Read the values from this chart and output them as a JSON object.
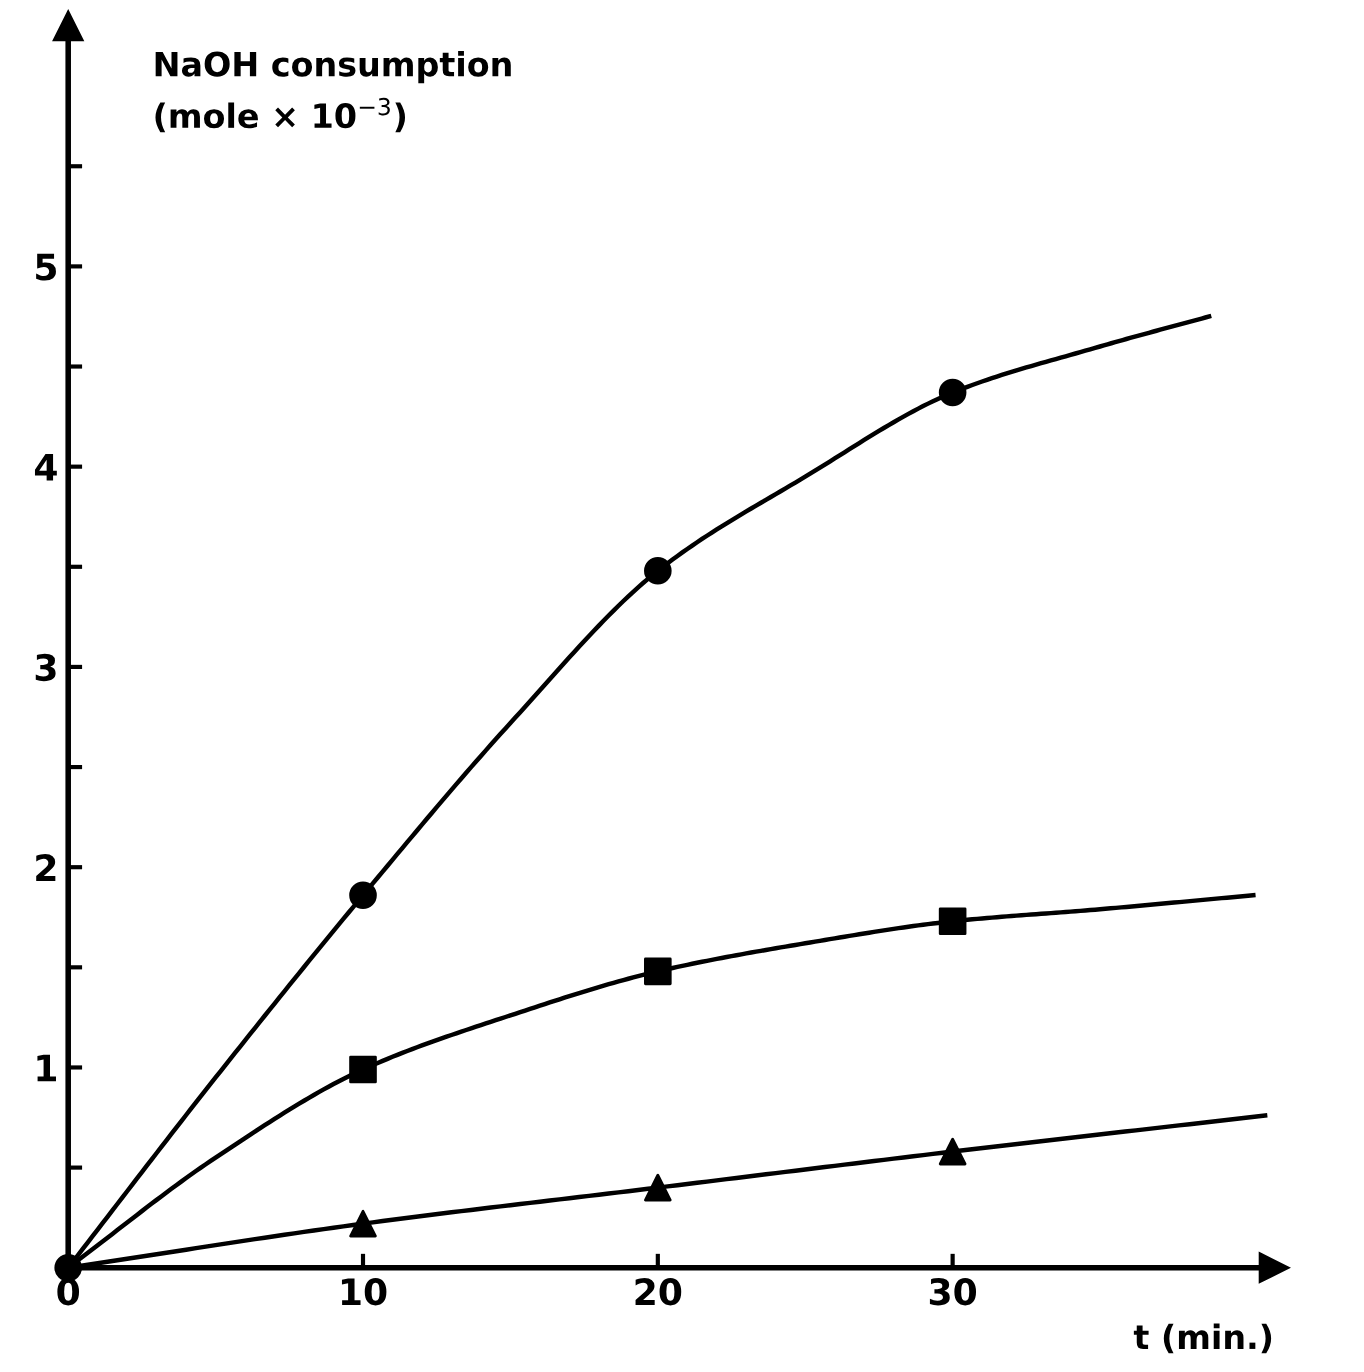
{
  "chart_data": {
    "type": "line",
    "xlabel": "t (min.)",
    "ylabel": "NaOH consumption\n(mole × 10$^{−3}$)",
    "xlim": [
      0,
      40.9
    ],
    "ylim": [
      0,
      6.2
    ],
    "xticks": [
      0,
      10,
      20,
      30
    ],
    "yticks": [
      {
        "value": 0.5,
        "label": null
      },
      1,
      {
        "value": 1.5,
        "label": null
      },
      2,
      {
        "value": 2.5,
        "label": null
      },
      3,
      {
        "value": 3.5,
        "label": null
      },
      4,
      {
        "value": 4.5,
        "label": null
      },
      5,
      {
        "value": 5.5,
        "label": null
      }
    ],
    "grid": false,
    "legend": false,
    "series": [
      {
        "color": "#000000",
        "marker": "none",
        "line_style": "solid",
        "x": [
          0,
          5,
          10,
          15,
          20,
          25,
          30,
          35,
          38.7
        ],
        "values": [
          0,
          0.95,
          1.86,
          2.72,
          3.48,
          3.95,
          4.37,
          4.6,
          4.75
        ]
      },
      {
        "color": "#000000",
        "marker": "none",
        "line_style": "solid",
        "x": [
          0,
          5,
          10,
          15,
          20,
          25,
          30,
          35,
          40.2
        ],
        "values": [
          0,
          0.55,
          0.99,
          1.26,
          1.48,
          1.62,
          1.73,
          1.79,
          1.86
        ]
      },
      {
        "color": "#000000",
        "marker": "none",
        "line_style": "solid",
        "x": [
          0,
          10,
          20,
          30,
          40.6
        ],
        "values": [
          0,
          0.22,
          0.4,
          0.58,
          0.76
        ]
      },
      {
        "type": "scatter",
        "color": "#000000",
        "marker": "circle",
        "x": [
          0,
          10,
          20,
          30
        ],
        "values": [
          0,
          1.86,
          3.48,
          4.37
        ]
      },
      {
        "type": "scatter",
        "color": "#000000",
        "marker": "square",
        "x": [
          10,
          20,
          30
        ],
        "values": [
          0.99,
          1.48,
          1.73
        ]
      },
      {
        "type": "scatter",
        "color": "#000000",
        "marker": "triangle",
        "x": [
          10,
          20,
          30
        ],
        "values": [
          0.22,
          0.4,
          0.58
        ]
      }
    ]
  }
}
